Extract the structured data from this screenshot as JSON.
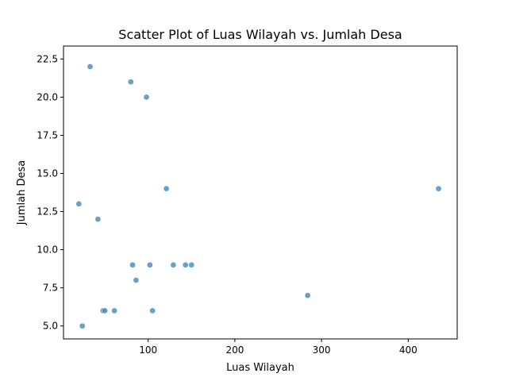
{
  "chart_data": {
    "type": "scatter",
    "title": "Scatter Plot of Luas Wilayah vs. Jumlah Desa",
    "xlabel": "Luas Wilayah",
    "ylabel": "Jumlah Desa",
    "xlim": [
      2.3,
      456.5
    ],
    "ylim": [
      4.15,
      23.35
    ],
    "xticks": [
      100,
      200,
      300,
      400
    ],
    "yticks": [
      5.0,
      7.5,
      10.0,
      12.5,
      15.0,
      17.5,
      20.0,
      22.5
    ],
    "xtick_labels": [
      "100",
      "200",
      "300",
      "400"
    ],
    "ytick_labels": [
      "5.0",
      "7.5",
      "10.0",
      "12.5",
      "15.0",
      "17.5",
      "20.0",
      "22.5"
    ],
    "grid": false,
    "color": "#4c8fc0",
    "points": [
      {
        "x": 33,
        "y": 22
      },
      {
        "x": 80,
        "y": 21
      },
      {
        "x": 98,
        "y": 20
      },
      {
        "x": 121,
        "y": 14
      },
      {
        "x": 435,
        "y": 14
      },
      {
        "x": 20,
        "y": 13
      },
      {
        "x": 42,
        "y": 12
      },
      {
        "x": 82,
        "y": 9
      },
      {
        "x": 102,
        "y": 9
      },
      {
        "x": 129,
        "y": 9
      },
      {
        "x": 143,
        "y": 9
      },
      {
        "x": 150,
        "y": 9
      },
      {
        "x": 86,
        "y": 8
      },
      {
        "x": 284,
        "y": 7
      },
      {
        "x": 48,
        "y": 6
      },
      {
        "x": 50,
        "y": 6
      },
      {
        "x": 61,
        "y": 6
      },
      {
        "x": 105,
        "y": 6
      },
      {
        "x": 24,
        "y": 5
      }
    ]
  }
}
